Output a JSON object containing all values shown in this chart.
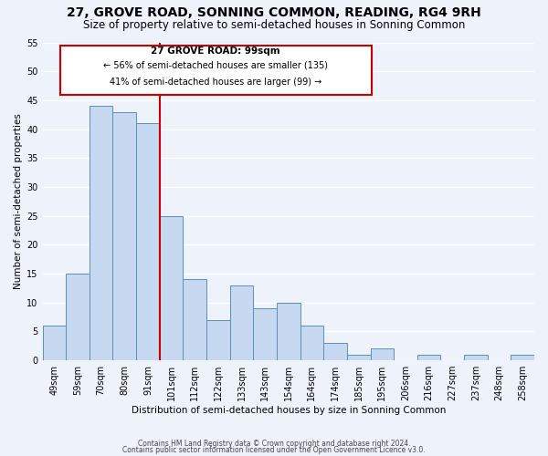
{
  "title": "27, GROVE ROAD, SONNING COMMON, READING, RG4 9RH",
  "subtitle": "Size of property relative to semi-detached houses in Sonning Common",
  "xlabel": "Distribution of semi-detached houses by size in Sonning Common",
  "ylabel": "Number of semi-detached properties",
  "bin_labels": [
    "49sqm",
    "59sqm",
    "70sqm",
    "80sqm",
    "91sqm",
    "101sqm",
    "112sqm",
    "122sqm",
    "133sqm",
    "143sqm",
    "154sqm",
    "164sqm",
    "174sqm",
    "185sqm",
    "195sqm",
    "206sqm",
    "216sqm",
    "227sqm",
    "237sqm",
    "248sqm",
    "258sqm"
  ],
  "bar_heights": [
    6,
    15,
    44,
    43,
    41,
    25,
    14,
    7,
    13,
    9,
    10,
    6,
    3,
    1,
    2,
    0,
    1,
    0,
    1,
    0,
    1
  ],
  "bar_color": "#c6d9f0",
  "bar_edge_color": "#5a8fc0",
  "red_line_index": 5,
  "annotation_title": "27 GROVE ROAD: 99sqm",
  "annotation_line1": "← 56% of semi-detached houses are smaller (135)",
  "annotation_line2": "41% of semi-detached houses are larger (99) →",
  "annotation_box_color": "#ffffff",
  "annotation_box_edge": "#cc0000",
  "ylim": [
    0,
    55
  ],
  "yticks": [
    0,
    5,
    10,
    15,
    20,
    25,
    30,
    35,
    40,
    45,
    50,
    55
  ],
  "footer1": "Contains HM Land Registry data © Crown copyright and database right 2024.",
  "footer2": "Contains public sector information licensed under the Open Government Licence v3.0.",
  "background_color": "#eef2fa",
  "grid_color": "#ffffff",
  "title_fontsize": 10,
  "subtitle_fontsize": 8.5
}
